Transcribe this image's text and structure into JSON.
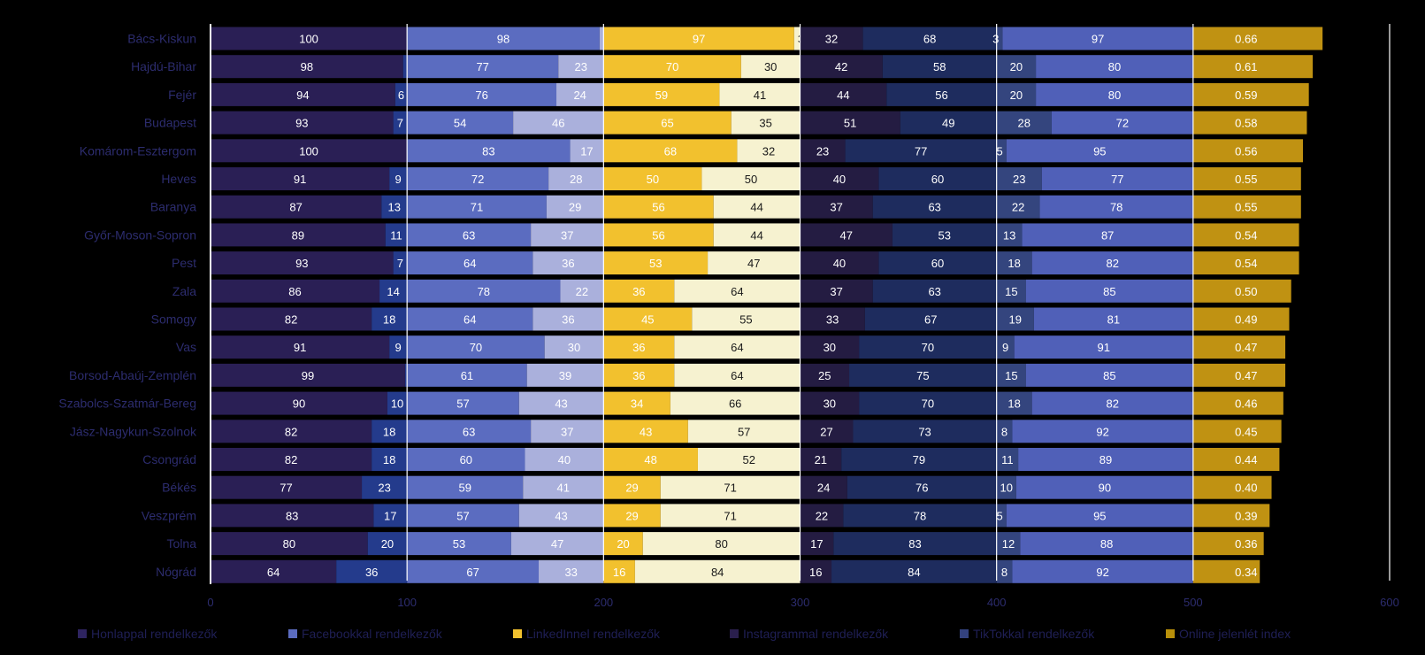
{
  "chart_data": {
    "type": "bar",
    "orientation": "horizontal",
    "stacked": true,
    "xlim": [
      0,
      600
    ],
    "xticks": [
      0,
      100,
      200,
      300,
      400,
      500,
      600
    ],
    "xtick_labels": [
      "0",
      "100",
      "200",
      "300",
      "400",
      "500",
      "600"
    ],
    "categories": [
      "Bács-Kiskun",
      "Hajdú-Bihar",
      "Fejér",
      "Budapest",
      "Komárom-Esztergom",
      "Heves",
      "Baranya",
      "Győr-Moson-Sopron",
      "Pest",
      "Zala",
      "Somogy",
      "Vas",
      "Borsod-Abaúj-Zemplén",
      "Szabolcs-Szatmár-Bereg",
      "Jász-Nagykun-Szolnok",
      "Csongrád",
      "Békés",
      "Veszprém",
      "Tolna",
      "Nógrád"
    ],
    "groups": [
      {
        "legend": "Honlappal rendelkezők",
        "legend_color": "#2e2460",
        "colors": [
          "#2a1f55",
          "#243b8c"
        ],
        "yes": [
          100,
          98,
          94,
          93,
          100,
          91,
          87,
          89,
          93,
          86,
          82,
          91,
          99,
          90,
          82,
          82,
          77,
          83,
          80,
          64
        ]
      },
      {
        "legend": "Facebookkal rendelkezők",
        "legend_color": "#5b6cc0",
        "colors": [
          "#5b6cc0",
          "#aab0dc"
        ],
        "yes": [
          98,
          77,
          76,
          54,
          83,
          72,
          71,
          63,
          64,
          78,
          64,
          70,
          61,
          57,
          63,
          60,
          59,
          57,
          53,
          67
        ]
      },
      {
        "legend": "LinkedInnel rendelkezők",
        "legend_color": "#f2c12e",
        "colors": [
          "#f2c12e",
          "#f6f2d0"
        ],
        "yes": [
          97,
          70,
          59,
          65,
          68,
          50,
          56,
          56,
          53,
          36,
          45,
          36,
          36,
          34,
          43,
          48,
          29,
          29,
          20,
          16
        ]
      },
      {
        "legend": "Instagrammal rendelkezők",
        "legend_color": "#2a1f4d",
        "colors": [
          "#241c42",
          "#1e2c5e"
        ],
        "yes": [
          32,
          42,
          44,
          51,
          23,
          40,
          37,
          47,
          40,
          37,
          33,
          30,
          25,
          30,
          27,
          21,
          24,
          22,
          17,
          16
        ]
      },
      {
        "legend": "TikTokkal rendelkezők",
        "legend_color": "#33427e",
        "colors": [
          "#34457e",
          "#5060b8"
        ],
        "yes": [
          3,
          20,
          20,
          28,
          5,
          23,
          22,
          13,
          18,
          15,
          19,
          9,
          15,
          18,
          8,
          11,
          10,
          5,
          12,
          8
        ]
      }
    ],
    "index": {
      "legend": "Online jelenlét index",
      "legend_color": "#b8900a",
      "color": "#c09212",
      "values": [
        "0.66",
        "0.61",
        "0.59",
        "0.58",
        "0.56",
        "0.55",
        "0.55",
        "0.54",
        "0.54",
        "0.50",
        "0.49",
        "0.47",
        "0.47",
        "0.46",
        "0.45",
        "0.44",
        "0.40",
        "0.39",
        "0.36",
        "0.34"
      ]
    }
  }
}
